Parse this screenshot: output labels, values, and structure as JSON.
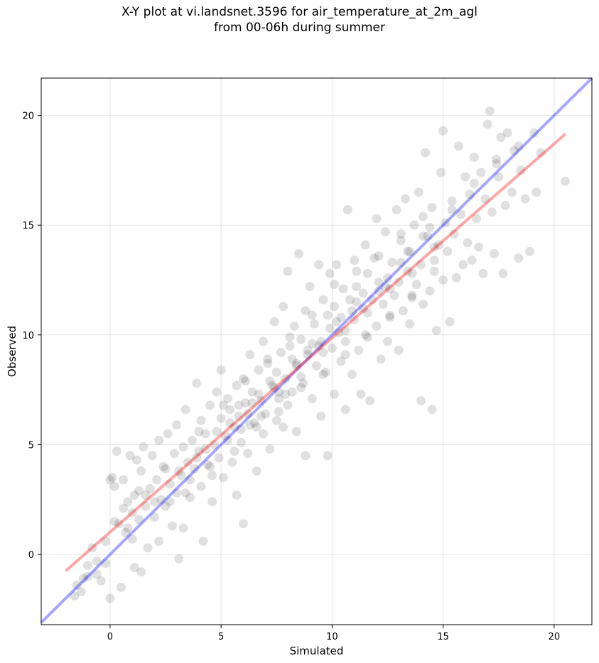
{
  "chart_data": {
    "type": "scatter",
    "title": "X-Y plot at vi.landsnet.3596 for air_temperature_at_2m_agl",
    "subtitle": "from 00-06h during summer",
    "xlabel": "Simulated",
    "ylabel": "Observed",
    "xlim": [
      -3.1,
      21.7
    ],
    "ylim": [
      -3.2,
      21.7
    ],
    "xticks": [
      0,
      5,
      10,
      15,
      20
    ],
    "yticks": [
      0,
      5,
      10,
      15,
      20
    ],
    "grid": true,
    "point_color": "#000000",
    "point_alpha": 0.12,
    "reference_lines": [
      {
        "description_color": "#0000ff",
        "x": [
          -3.1,
          21.7
        ],
        "y": [
          -3.1,
          21.7
        ],
        "alpha": 0.35
      },
      {
        "description_color": "#ff0000",
        "x": [
          -2.0,
          20.5
        ],
        "y": [
          -0.75,
          19.15
        ],
        "alpha": 0.35
      }
    ],
    "points": [
      [
        -1.6,
        -1.9
      ],
      [
        -1.5,
        -1.4
      ],
      [
        -1.2,
        -1.1
      ],
      [
        -1.0,
        -0.5
      ],
      [
        -0.8,
        0.3
      ],
      [
        -0.6,
        -0.9
      ],
      [
        -0.4,
        -1.2
      ],
      [
        -0.2,
        -0.4
      ],
      [
        0.0,
        -2.0
      ],
      [
        0.0,
        3.4
      ],
      [
        0.1,
        3.5
      ],
      [
        0.2,
        3.1
      ],
      [
        0.2,
        1.5
      ],
      [
        0.3,
        4.7
      ],
      [
        0.5,
        -1.5
      ],
      [
        0.6,
        2.1
      ],
      [
        0.6,
        3.4
      ],
      [
        0.7,
        1.0
      ],
      [
        0.8,
        2.4
      ],
      [
        0.9,
        4.5
      ],
      [
        1.0,
        0.7
      ],
      [
        1.1,
        2.7
      ],
      [
        1.1,
        -0.6
      ],
      [
        1.2,
        4.3
      ],
      [
        1.3,
        1.6
      ],
      [
        1.4,
        -0.8
      ],
      [
        1.4,
        3.8
      ],
      [
        1.5,
        4.9
      ],
      [
        1.6,
        2.2
      ],
      [
        1.7,
        0.3
      ],
      [
        1.8,
        3.0
      ],
      [
        1.9,
        4.5
      ],
      [
        2.0,
        1.7
      ],
      [
        2.1,
        3.4
      ],
      [
        2.2,
        5.2
      ],
      [
        2.2,
        0.6
      ],
      [
        2.3,
        2.5
      ],
      [
        2.4,
        4.0
      ],
      [
        2.5,
        2.2
      ],
      [
        2.6,
        5.5
      ],
      [
        2.7,
        3.2
      ],
      [
        2.8,
        1.3
      ],
      [
        2.9,
        4.6
      ],
      [
        3.0,
        5.9
      ],
      [
        3.0,
        2.8
      ],
      [
        3.1,
        -0.2
      ],
      [
        3.2,
        3.6
      ],
      [
        3.3,
        4.9
      ],
      [
        3.3,
        1.2
      ],
      [
        3.4,
        6.6
      ],
      [
        3.5,
        4.2
      ],
      [
        3.6,
        2.6
      ],
      [
        3.7,
        5.2
      ],
      [
        3.8,
        3.9
      ],
      [
        3.9,
        7.8
      ],
      [
        4.0,
        4.7
      ],
      [
        4.1,
        6.1
      ],
      [
        4.1,
        3.1
      ],
      [
        4.2,
        0.6
      ],
      [
        4.3,
        5.5
      ],
      [
        4.4,
        4.1
      ],
      [
        4.5,
        6.8
      ],
      [
        4.6,
        2.4
      ],
      [
        4.7,
        5.0
      ],
      [
        4.8,
        7.4
      ],
      [
        4.9,
        4.4
      ],
      [
        5.0,
        6.2
      ],
      [
        5.0,
        8.4
      ],
      [
        5.1,
        3.5
      ],
      [
        5.2,
        5.4
      ],
      [
        5.3,
        7.1
      ],
      [
        5.4,
        6.6
      ],
      [
        5.5,
        4.2
      ],
      [
        5.6,
        5.8
      ],
      [
        5.7,
        7.7
      ],
      [
        5.7,
        2.7
      ],
      [
        5.8,
        6.3
      ],
      [
        5.9,
        5.1
      ],
      [
        6.0,
        8.0
      ],
      [
        6.0,
        1.4
      ],
      [
        6.1,
        6.9
      ],
      [
        6.2,
        4.6
      ],
      [
        6.3,
        5.9
      ],
      [
        6.3,
        9.1
      ],
      [
        6.4,
        7.4
      ],
      [
        6.5,
        6.0
      ],
      [
        6.6,
        3.8
      ],
      [
        6.7,
        8.4
      ],
      [
        6.8,
        7.0
      ],
      [
        6.9,
        5.5
      ],
      [
        6.9,
        9.7
      ],
      [
        7.0,
        6.4
      ],
      [
        7.1,
        8.9
      ],
      [
        7.2,
        4.8
      ],
      [
        7.3,
        7.7
      ],
      [
        7.4,
        10.6
      ],
      [
        7.5,
        6.1
      ],
      [
        7.5,
        8.3
      ],
      [
        7.6,
        7.4
      ],
      [
        7.7,
        9.2
      ],
      [
        7.8,
        5.8
      ],
      [
        7.8,
        11.3
      ],
      [
        7.9,
        8.0
      ],
      [
        8.0,
        6.8
      ],
      [
        8.0,
        12.9
      ],
      [
        8.1,
        9.5
      ],
      [
        8.2,
        7.4
      ],
      [
        8.3,
        10.4
      ],
      [
        8.4,
        5.6
      ],
      [
        8.4,
        8.6
      ],
      [
        8.5,
        13.7
      ],
      [
        8.6,
        9.8
      ],
      [
        8.7,
        7.8
      ],
      [
        8.8,
        11.1
      ],
      [
        8.8,
        4.5
      ],
      [
        8.9,
        9.1
      ],
      [
        9.0,
        12.2
      ],
      [
        9.1,
        7.1
      ],
      [
        9.2,
        10.5
      ],
      [
        9.3,
        8.6
      ],
      [
        9.4,
        13.2
      ],
      [
        9.5,
        9.7
      ],
      [
        9.5,
        6.3
      ],
      [
        9.6,
        11.6
      ],
      [
        9.7,
        8.3
      ],
      [
        9.8,
        10.9
      ],
      [
        9.8,
        4.5
      ],
      [
        9.9,
        12.8
      ],
      [
        10.0,
        9.4
      ],
      [
        10.1,
        7.3
      ],
      [
        10.1,
        11.3
      ],
      [
        10.2,
        13.2
      ],
      [
        10.3,
        10.1
      ],
      [
        10.4,
        8.8
      ],
      [
        10.5,
        12.1
      ],
      [
        10.6,
        6.6
      ],
      [
        10.6,
        9.7
      ],
      [
        10.7,
        15.7
      ],
      [
        10.8,
        11.6
      ],
      [
        10.9,
        8.2
      ],
      [
        11.0,
        13.4
      ],
      [
        11.0,
        10.7
      ],
      [
        11.1,
        12.2
      ],
      [
        11.2,
        9.3
      ],
      [
        11.3,
        7.3
      ],
      [
        11.4,
        11.2
      ],
      [
        11.5,
        14.1
      ],
      [
        11.5,
        10.0
      ],
      [
        11.6,
        12.8
      ],
      [
        11.7,
        7.0
      ],
      [
        11.8,
        11.6
      ],
      [
        11.9,
        13.5
      ],
      [
        12.0,
        10.4
      ],
      [
        12.0,
        15.3
      ],
      [
        12.1,
        12.0
      ],
      [
        12.2,
        8.9
      ],
      [
        12.3,
        11.4
      ],
      [
        12.4,
        14.7
      ],
      [
        12.5,
        12.6
      ],
      [
        12.5,
        9.7
      ],
      [
        12.6,
        10.9
      ],
      [
        12.7,
        13.3
      ],
      [
        12.8,
        11.8
      ],
      [
        12.9,
        15.7
      ],
      [
        13.0,
        9.3
      ],
      [
        13.0,
        12.4
      ],
      [
        13.1,
        14.3
      ],
      [
        13.2,
        11.1
      ],
      [
        13.3,
        16.2
      ],
      [
        13.4,
        12.9
      ],
      [
        13.5,
        10.5
      ],
      [
        13.5,
        13.8
      ],
      [
        13.6,
        11.8
      ],
      [
        13.7,
        15.0
      ],
      [
        13.8,
        12.3
      ],
      [
        13.9,
        16.5
      ],
      [
        14.0,
        7.0
      ],
      [
        14.0,
        13.2
      ],
      [
        14.1,
        11.4
      ],
      [
        14.2,
        18.3
      ],
      [
        14.3,
        14.5
      ],
      [
        14.4,
        12.0
      ],
      [
        14.5,
        6.6
      ],
      [
        14.5,
        15.8
      ],
      [
        14.6,
        13.4
      ],
      [
        14.7,
        10.2
      ],
      [
        14.8,
        14.1
      ],
      [
        14.9,
        17.4
      ],
      [
        15.0,
        12.5
      ],
      [
        15.0,
        19.3
      ],
      [
        15.1,
        15.1
      ],
      [
        15.2,
        13.8
      ],
      [
        15.3,
        10.6
      ],
      [
        15.4,
        16.1
      ],
      [
        15.5,
        14.6
      ],
      [
        15.6,
        12.6
      ],
      [
        15.7,
        18.6
      ],
      [
        15.8,
        15.5
      ],
      [
        15.9,
        13.2
      ],
      [
        16.0,
        17.2
      ],
      [
        16.1,
        14.2
      ],
      [
        16.2,
        16.4
      ],
      [
        16.3,
        13.4
      ],
      [
        16.4,
        18.1
      ],
      [
        16.5,
        15.3
      ],
      [
        16.6,
        14.0
      ],
      [
        16.7,
        17.4
      ],
      [
        16.8,
        12.8
      ],
      [
        16.9,
        16.2
      ],
      [
        17.0,
        19.6
      ],
      [
        17.1,
        20.2
      ],
      [
        17.2,
        15.6
      ],
      [
        17.3,
        13.7
      ],
      [
        17.4,
        18.0
      ],
      [
        17.5,
        17.2
      ],
      [
        17.6,
        19.0
      ],
      [
        17.7,
        12.8
      ],
      [
        17.8,
        15.9
      ],
      [
        17.9,
        19.2
      ],
      [
        18.1,
        16.5
      ],
      [
        18.2,
        18.4
      ],
      [
        18.4,
        13.5
      ],
      [
        18.5,
        17.5
      ],
      [
        18.7,
        16.2
      ],
      [
        18.9,
        13.8
      ],
      [
        19.1,
        19.2
      ],
      [
        19.2,
        16.5
      ],
      [
        19.4,
        18.3
      ],
      [
        20.5,
        17.0
      ],
      [
        2.7,
        2.4
      ],
      [
        3.1,
        3.8
      ],
      [
        3.6,
        3.4
      ],
      [
        4.3,
        4.8
      ],
      [
        4.8,
        5.6
      ],
      [
        5.3,
        5.2
      ],
      [
        5.8,
        6.8
      ],
      [
        6.2,
        6.4
      ],
      [
        6.7,
        7.3
      ],
      [
        7.2,
        7.9
      ],
      [
        7.6,
        7.1
      ],
      [
        8.2,
        8.9
      ],
      [
        8.6,
        8.1
      ],
      [
        9.1,
        9.6
      ],
      [
        9.6,
        9.2
      ],
      [
        10.2,
        10.6
      ],
      [
        10.6,
        10.2
      ],
      [
        11.1,
        11.5
      ],
      [
        11.6,
        11.0
      ],
      [
        12.1,
        12.4
      ],
      [
        12.6,
        12.1
      ],
      [
        13.1,
        13.3
      ],
      [
        13.6,
        12.8
      ],
      [
        14.1,
        14.5
      ],
      [
        14.6,
        14.0
      ],
      [
        2.5,
        3.9
      ],
      [
        3.4,
        2.8
      ],
      [
        4.0,
        5.6
      ],
      [
        4.6,
        3.6
      ],
      [
        5.1,
        6.8
      ],
      [
        5.6,
        4.7
      ],
      [
        6.1,
        7.9
      ],
      [
        6.6,
        5.8
      ],
      [
        7.1,
        8.7
      ],
      [
        7.6,
        6.5
      ],
      [
        8.1,
        9.9
      ],
      [
        8.6,
        7.6
      ],
      [
        9.1,
        10.9
      ],
      [
        9.6,
        8.2
      ],
      [
        10.1,
        12.3
      ],
      [
        10.6,
        9.1
      ],
      [
        11.1,
        12.9
      ],
      [
        11.6,
        9.9
      ],
      [
        12.1,
        13.6
      ],
      [
        12.6,
        10.8
      ],
      [
        13.1,
        14.6
      ],
      [
        13.6,
        11.7
      ],
      [
        14.1,
        15.4
      ],
      [
        14.6,
        12.9
      ],
      [
        -0.2,
        0.6
      ],
      [
        0.4,
        1.4
      ],
      [
        1.0,
        1.9
      ],
      [
        1.6,
        2.7
      ],
      [
        2.0,
        2.4
      ],
      [
        1.3,
        2.9
      ],
      [
        0.8,
        1.2
      ],
      [
        -1.0,
        -1.0
      ],
      [
        -1.3,
        -1.7
      ],
      [
        -0.6,
        -0.3
      ],
      [
        3.9,
        4.4
      ],
      [
        4.5,
        4.0
      ],
      [
        5.4,
        6.0
      ],
      [
        6.4,
        6.9
      ],
      [
        7.4,
        7.6
      ],
      [
        8.4,
        8.7
      ],
      [
        9.4,
        9.5
      ],
      [
        10.4,
        10.8
      ],
      [
        11.4,
        11.9
      ],
      [
        12.4,
        12.2
      ],
      [
        13.4,
        13.8
      ],
      [
        14.4,
        14.9
      ],
      [
        15.4,
        15.7
      ],
      [
        16.4,
        16.9
      ],
      [
        17.4,
        17.8
      ],
      [
        18.4,
        18.6
      ],
      [
        5.9,
        5.7
      ],
      [
        6.8,
        6.3
      ],
      [
        7.9,
        7.3
      ],
      [
        8.9,
        9.3
      ],
      [
        9.9,
        10.3
      ],
      [
        10.9,
        11.1
      ]
    ]
  }
}
